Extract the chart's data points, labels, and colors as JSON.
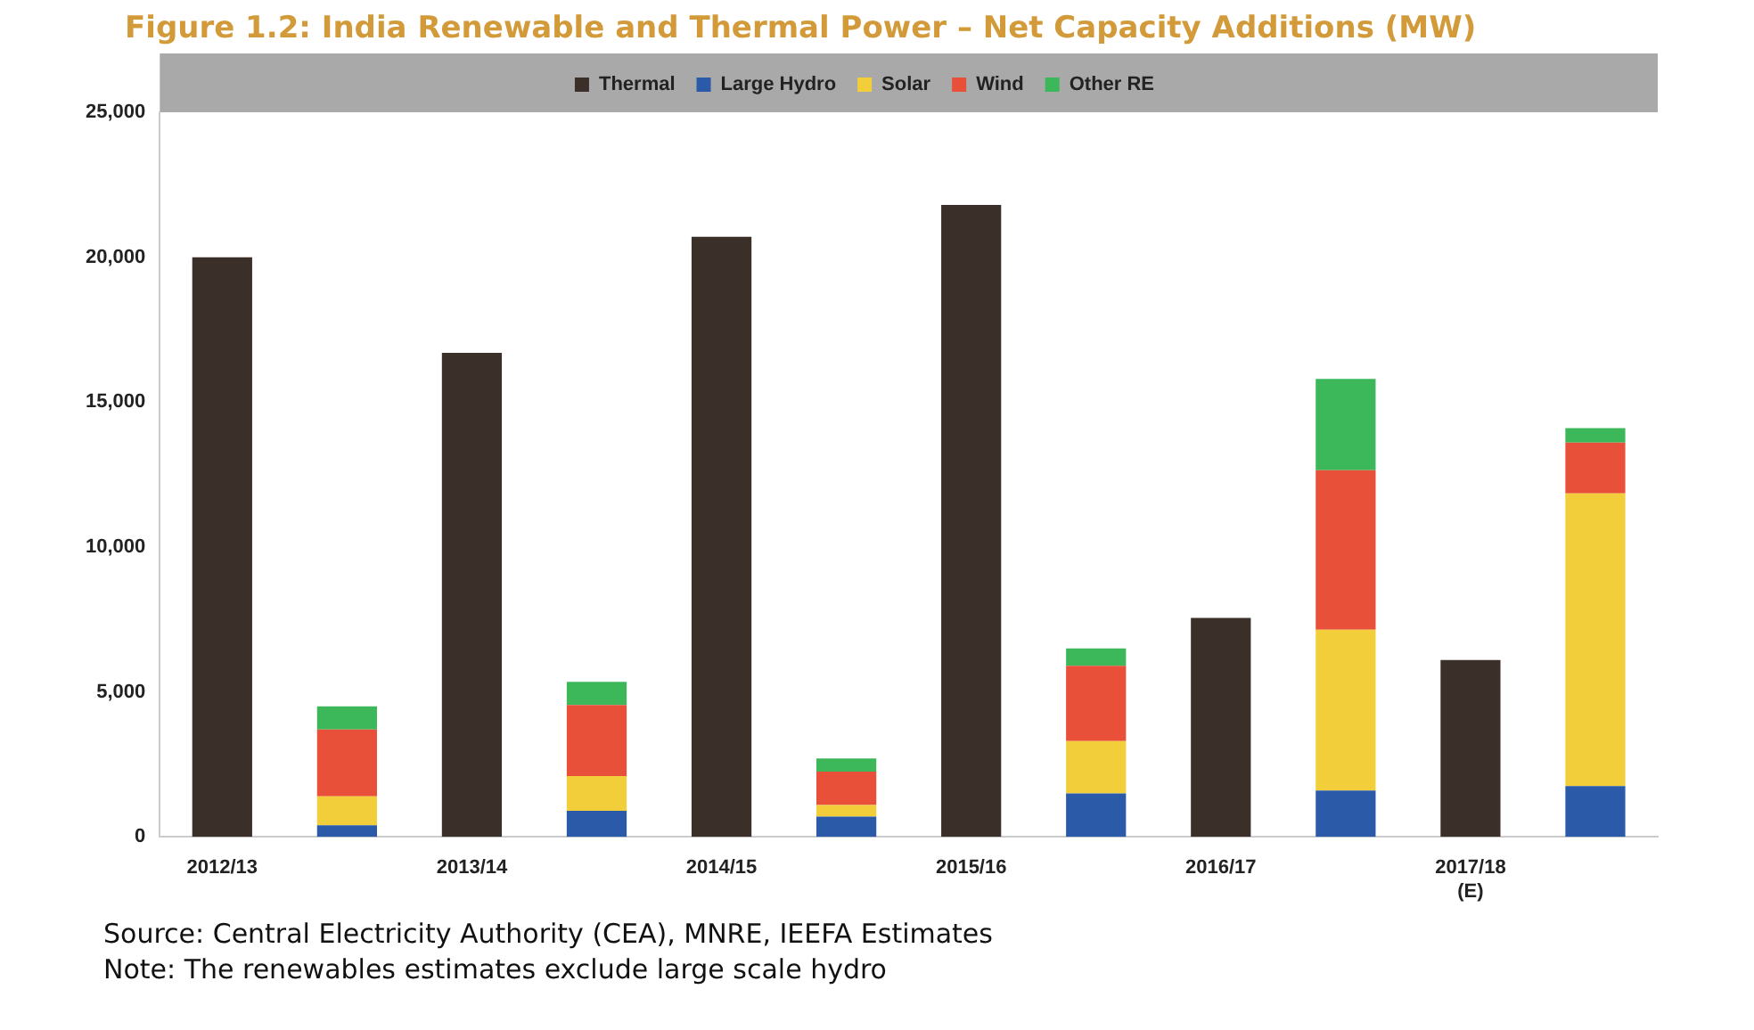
{
  "chart_data": {
    "type": "bar",
    "title": "Figure 1.2: India Renewable and Thermal Power – Net Capacity Additions (MW)",
    "categories": [
      "2012/13",
      null,
      "2013/14",
      null,
      "2014/15",
      null,
      "2015/16",
      null,
      "2016/17",
      null,
      "2017/18\n(E)",
      null
    ],
    "stacked": true,
    "legend": "top",
    "grid": false,
    "ylim": [
      0,
      25000
    ],
    "yticks": [
      {
        "value": 0,
        "label": "0"
      },
      {
        "value": 5000,
        "label": "5,000"
      },
      {
        "value": 10000,
        "label": "10,000"
      },
      {
        "value": 15000,
        "label": "15,000"
      },
      {
        "value": 20000,
        "label": "20,000"
      },
      {
        "value": 25000,
        "label": "25,000"
      }
    ],
    "series": [
      {
        "name": "Thermal",
        "color": "#3b2f2a",
        "values": [
          20000,
          null,
          16700,
          null,
          20700,
          null,
          21800,
          null,
          7550,
          null,
          6100,
          null
        ]
      },
      {
        "name": "Large Hydro",
        "color": "#2a5aa8",
        "values": [
          null,
          400,
          null,
          900,
          null,
          700,
          null,
          1500,
          null,
          1600,
          null,
          1750
        ]
      },
      {
        "name": "Solar",
        "color": "#f2cf3a",
        "values": [
          null,
          1000,
          null,
          1200,
          null,
          400,
          null,
          1800,
          null,
          5550,
          null,
          10100
        ]
      },
      {
        "name": "Wind",
        "color": "#e8503a",
        "values": [
          null,
          2300,
          null,
          2450,
          null,
          1150,
          null,
          2600,
          null,
          5500,
          null,
          1750
        ]
      },
      {
        "name": "Other RE",
        "color": "#3cb85a",
        "values": [
          null,
          800,
          null,
          800,
          null,
          450,
          null,
          600,
          null,
          3150,
          null,
          500
        ]
      }
    ],
    "annotations": [
      "Source: Central Electricity Authority (CEA), MNRE, IEEFA Estimates",
      "Note: The renewables estimates exclude large scale hydro"
    ]
  }
}
